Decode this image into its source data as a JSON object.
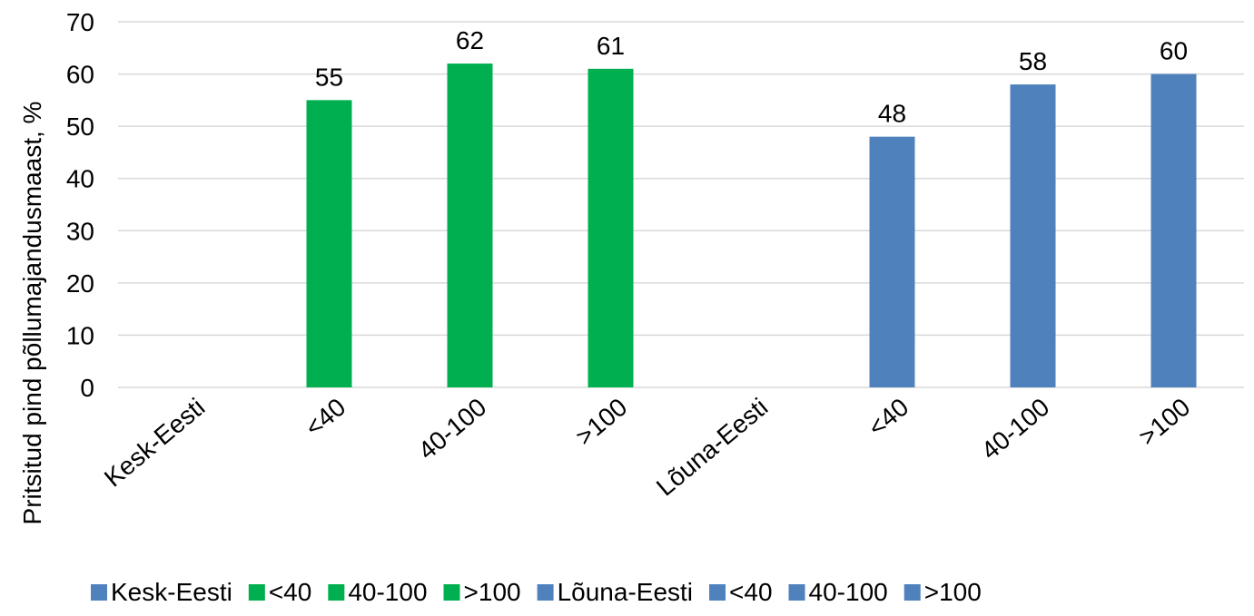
{
  "chart_data": {
    "type": "bar",
    "title": "",
    "xlabel": "",
    "ylabel": "Pritsitud pind põllumajandusmaast, %",
    "ylim": [
      0,
      70
    ],
    "yticks": [
      0,
      10,
      20,
      30,
      40,
      50,
      60,
      70
    ],
    "grid": true,
    "legend_position": "bottom",
    "categories": [
      "Kesk-Eesti",
      "<40",
      "40-100",
      ">100",
      "Lõuna-Eesti",
      "<40",
      "40-100",
      ">100"
    ],
    "values": [
      null,
      55,
      62,
      61,
      null,
      48,
      58,
      60
    ],
    "data_labels": [
      "",
      "55",
      "62",
      "61",
      "",
      "48",
      "58",
      "60"
    ],
    "colors": [
      "#4f81bd",
      "#00b050",
      "#00b050",
      "#00b050",
      "#4f81bd",
      "#4f81bd",
      "#4f81bd",
      "#4f81bd"
    ],
    "legend": [
      {
        "label": "Kesk-Eesti",
        "color": "#4f81bd"
      },
      {
        "label": "<40",
        "color": "#00b050"
      },
      {
        "label": "40-100",
        "color": "#00b050"
      },
      {
        "label": ">100",
        "color": "#00b050"
      },
      {
        "label": "Lõuna-Eesti",
        "color": "#4f81bd"
      },
      {
        "label": "<40",
        "color": "#4f81bd"
      },
      {
        "label": "40-100",
        "color": "#4f81bd"
      },
      {
        "label": ">100",
        "color": "#4f81bd"
      }
    ]
  }
}
